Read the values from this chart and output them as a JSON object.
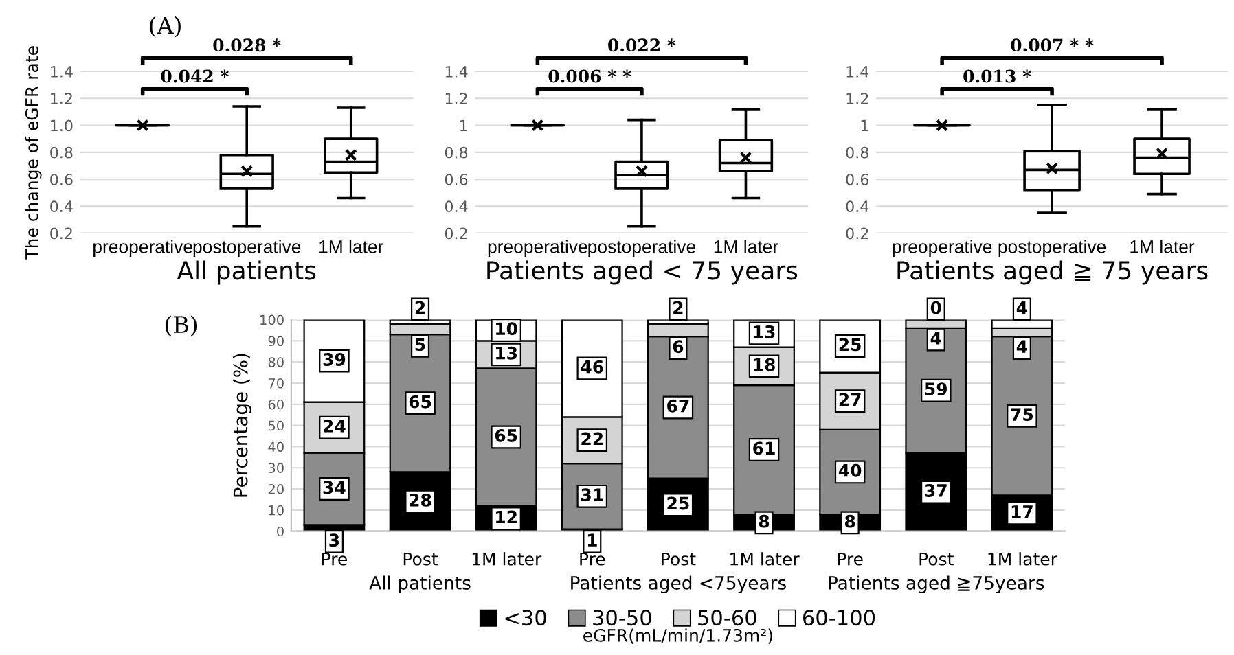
{
  "chart_data": [
    {
      "type": "box",
      "title": "(A)",
      "xlabel": "All patients",
      "ylabel": "The change of eGFR rate",
      "categories": [
        "preoperative",
        "postoperative",
        "1M later"
      ],
      "boxes": [
        {
          "low": 1.0,
          "q1": 1.0,
          "median": 1.0,
          "q3": 1.0,
          "high": 1.0,
          "mean": 1.0
        },
        {
          "low": 0.25,
          "q1": 0.53,
          "median": 0.64,
          "q3": 0.78,
          "high": 1.14,
          "mean": 0.66
        },
        {
          "low": 0.46,
          "q1": 0.65,
          "median": 0.73,
          "q3": 0.9,
          "high": 1.13,
          "mean": 0.78
        }
      ],
      "ylim": [
        0.2,
        1.4
      ],
      "yticks": [
        0.2,
        0.4,
        0.6,
        0.8,
        {
          "value": 1.0,
          "label": "1.0"
        },
        1.2,
        1.4
      ],
      "grid": "y",
      "marker": "cross",
      "annotations": [
        "0.042 *",
        "0.028 *"
      ]
    },
    {
      "type": "box",
      "xlabel": "Patients aged < 75 years",
      "categories": [
        "preoperative",
        "postoperative",
        "1M later"
      ],
      "boxes": [
        {
          "low": 1.0,
          "q1": 1.0,
          "median": 1.0,
          "q3": 1.0,
          "high": 1.0,
          "mean": 1.0
        },
        {
          "low": 0.25,
          "q1": 0.53,
          "median": 0.63,
          "q3": 0.73,
          "high": 1.04,
          "mean": 0.66
        },
        {
          "low": 0.46,
          "q1": 0.66,
          "median": 0.72,
          "q3": 0.89,
          "high": 1.12,
          "mean": 0.76
        }
      ],
      "ylim": [
        0.2,
        1.4
      ],
      "yticks": [
        0.2,
        0.4,
        0.6,
        0.8,
        1,
        1.2,
        1.4
      ],
      "grid": "y",
      "marker": "cross",
      "annotations": [
        "0.006 * *",
        "0.022 *"
      ]
    },
    {
      "type": "box",
      "xlabel": "Patients aged ≧ 75 years",
      "categories": [
        "preoperative",
        "postoperative",
        "1M later"
      ],
      "boxes": [
        {
          "low": 1.0,
          "q1": 1.0,
          "median": 1.0,
          "q3": 1.0,
          "high": 1.0,
          "mean": 1.0
        },
        {
          "low": 0.35,
          "q1": 0.52,
          "median": 0.67,
          "q3": 0.81,
          "high": 1.15,
          "mean": 0.68
        },
        {
          "low": 0.49,
          "q1": 0.64,
          "median": 0.76,
          "q3": 0.9,
          "high": 1.12,
          "mean": 0.79
        }
      ],
      "ylim": [
        0.2,
        1.4
      ],
      "yticks": [
        0.2,
        0.4,
        0.6,
        0.8,
        1,
        1.2,
        1.4
      ],
      "grid": "y",
      "marker": "cross",
      "annotations": [
        "0.013 *",
        "0.007 * *"
      ]
    },
    {
      "type": "bar",
      "stacked": true,
      "title": "(B)",
      "ylabel": "Percentage (%)",
      "legend_title": "eGFR(mL/min/1.73m²)",
      "categories": [
        "Pre",
        "Post",
        "1M later",
        "Pre",
        "Post",
        "1M later",
        "Pre",
        "Post",
        "1M later"
      ],
      "series": [
        {
          "name": "<30",
          "color": "#000000",
          "values": [
            3,
            28,
            12,
            1,
            25,
            8,
            8,
            37,
            17
          ]
        },
        {
          "name": "30-50",
          "color": "#8c8c8c",
          "values": [
            34,
            65,
            65,
            31,
            67,
            61,
            40,
            59,
            75
          ]
        },
        {
          "name": "50-60",
          "color": "#d4d4d4",
          "values": [
            24,
            5,
            13,
            22,
            6,
            18,
            27,
            4,
            4
          ]
        },
        {
          "name": "60-100",
          "color": "#ffffff",
          "values": [
            39,
            2,
            10,
            46,
            2,
            13,
            25,
            0,
            4
          ]
        }
      ],
      "ylim": [
        0,
        100
      ],
      "yticks": [
        0,
        10,
        20,
        30,
        40,
        50,
        60,
        70,
        80,
        90,
        100
      ],
      "grid": "y",
      "data_labels": true,
      "legend": "bottom",
      "annotations": [
        "All patients",
        "Patients aged <75years",
        "Patients aged ≧75years"
      ]
    }
  ]
}
